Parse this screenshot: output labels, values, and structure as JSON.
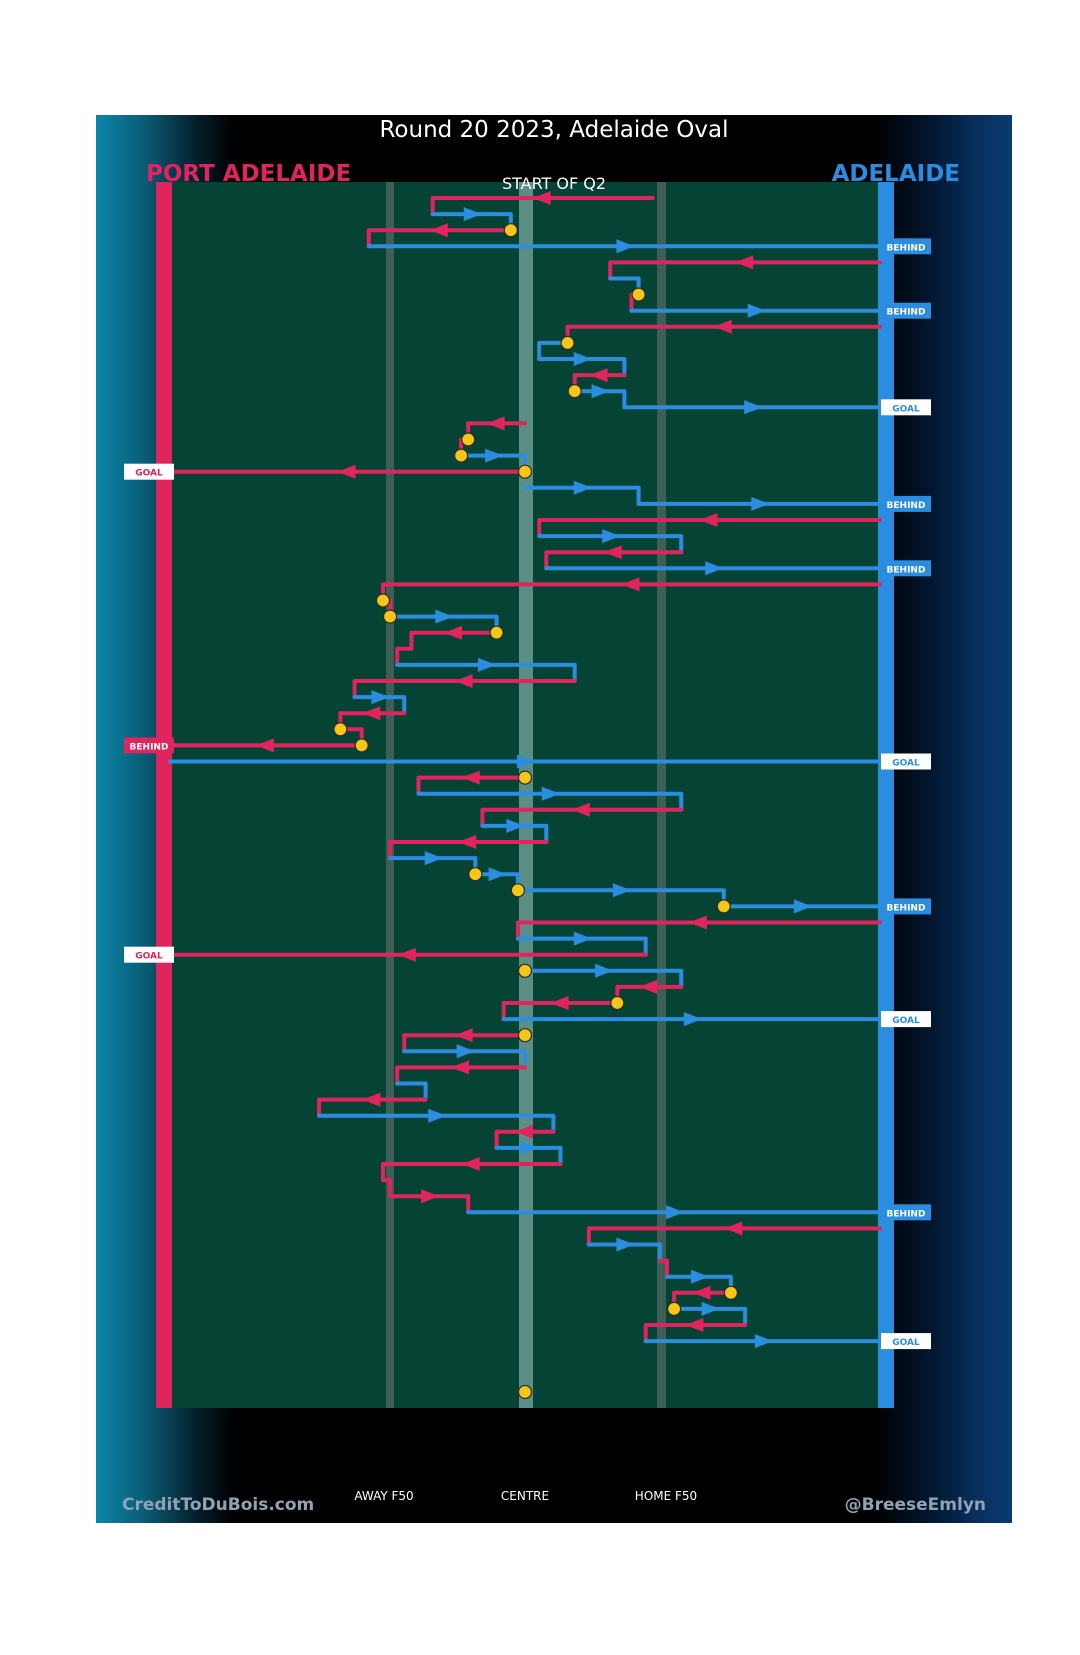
{
  "header": {
    "title": "Round 20 2023, Adelaide Oval",
    "team_left": "PORT ADELAIDE",
    "team_right": "ADELAIDE",
    "start_label": "START OF Q2"
  },
  "axis": {
    "away_f50": "AWAY F50",
    "centre": "CENTRE",
    "home_f50": "HOME F50"
  },
  "footer": {
    "credit_left": "CreditToDuBois.com",
    "credit_right": "@BreeseEmlyn"
  },
  "colors": {
    "port_adelaide": "#e0245e",
    "adelaide": "#2b8de0",
    "field": "#054435",
    "stoppage_marker": "#f5c518"
  },
  "chart_data": {
    "type": "chain-timeline",
    "title": "Round 20 2023, Adelaide Oval",
    "subtitle": "START OF Q2",
    "xaxis_labels": [
      "AWAY F50",
      "CENTRE",
      "HOME F50"
    ],
    "legend": [
      "PORT ADELAIDE",
      "ADELAIDE"
    ],
    "chains": [
      {
        "team": "PA",
        "pts": [
          [
            18,
            0
          ],
          [
            -13,
            0
          ],
          [
            -13,
            1
          ]
        ]
      },
      {
        "team": "AD",
        "pts": [
          [
            -13,
            1
          ],
          [
            -2,
            1
          ],
          [
            -2,
            2
          ]
        ]
      },
      {
        "team": "PA",
        "pts": [
          [
            -2,
            2
          ],
          [
            -22,
            2
          ],
          [
            -22,
            3
          ]
        ],
        "start": "stoppage"
      },
      {
        "team": "AD",
        "pts": [
          [
            -22,
            3
          ],
          [
            50,
            3
          ]
        ],
        "result": "BEHIND"
      },
      {
        "team": "PA",
        "pts": [
          [
            50,
            4
          ],
          [
            12,
            4
          ],
          [
            12,
            5
          ]
        ]
      },
      {
        "team": "AD",
        "pts": [
          [
            12,
            5
          ],
          [
            16,
            5
          ],
          [
            16,
            6
          ]
        ]
      },
      {
        "team": "PA",
        "pts": [
          [
            16,
            6
          ],
          [
            15,
            6
          ],
          [
            15,
            7
          ]
        ],
        "start": "stoppage"
      },
      {
        "team": "AD",
        "pts": [
          [
            15,
            7
          ],
          [
            50,
            7
          ]
        ],
        "result": "BEHIND"
      },
      {
        "team": "PA",
        "pts": [
          [
            50,
            8
          ],
          [
            6,
            8
          ],
          [
            6,
            9
          ]
        ]
      },
      {
        "team": "AD",
        "pts": [
          [
            6,
            9
          ],
          [
            2,
            9
          ],
          [
            2,
            10
          ]
        ],
        "start": "stoppage"
      },
      {
        "team": "AD",
        "pts": [
          [
            2,
            10
          ],
          [
            14,
            10
          ],
          [
            14,
            11
          ]
        ]
      },
      {
        "team": "PA",
        "pts": [
          [
            14,
            11
          ],
          [
            7,
            11
          ],
          [
            7,
            12
          ]
        ]
      },
      {
        "team": "AD",
        "pts": [
          [
            7,
            12
          ],
          [
            14,
            12
          ],
          [
            14,
            13
          ]
        ],
        "start": "stoppage"
      },
      {
        "team": "AD",
        "pts": [
          [
            14,
            13
          ],
          [
            50,
            13
          ]
        ],
        "result": "GOAL"
      },
      {
        "team": "PA",
        "pts": [
          [
            0,
            14
          ],
          [
            -8,
            14
          ],
          [
            -8,
            15
          ]
        ]
      },
      {
        "team": "PA",
        "pts": [
          [
            -8,
            15
          ],
          [
            -9,
            15
          ],
          [
            -9,
            16
          ]
        ],
        "start": "stoppage"
      },
      {
        "team": "AD",
        "pts": [
          [
            -9,
            16
          ],
          [
            0,
            16
          ],
          [
            0,
            17
          ]
        ],
        "start": "stoppage"
      },
      {
        "team": "PA",
        "pts": [
          [
            0,
            17
          ],
          [
            -50,
            17
          ]
        ],
        "result": "GOAL",
        "start": "stoppage"
      },
      {
        "team": "AD",
        "pts": [
          [
            0,
            18
          ],
          [
            16,
            18
          ],
          [
            16,
            19
          ]
        ]
      },
      {
        "team": "AD",
        "pts": [
          [
            16,
            19
          ],
          [
            50,
            19
          ]
        ],
        "result": "BEHIND"
      },
      {
        "team": "PA",
        "pts": [
          [
            50,
            20
          ],
          [
            2,
            20
          ],
          [
            2,
            21
          ]
        ]
      },
      {
        "team": "AD",
        "pts": [
          [
            2,
            21
          ],
          [
            22,
            21
          ],
          [
            22,
            22
          ]
        ]
      },
      {
        "team": "PA",
        "pts": [
          [
            22,
            22
          ],
          [
            3,
            22
          ],
          [
            3,
            23
          ]
        ]
      },
      {
        "team": "AD",
        "pts": [
          [
            3,
            23
          ],
          [
            50,
            23
          ]
        ],
        "result": "BEHIND"
      },
      {
        "team": "PA",
        "pts": [
          [
            50,
            24
          ],
          [
            -20,
            24
          ],
          [
            -20,
            25
          ]
        ]
      },
      {
        "team": "PA",
        "pts": [
          [
            -20,
            25
          ],
          [
            -19,
            25
          ],
          [
            -19,
            26
          ]
        ],
        "start": "stoppage"
      },
      {
        "team": "AD",
        "pts": [
          [
            -19,
            26
          ],
          [
            -4,
            26
          ],
          [
            -4,
            27
          ]
        ],
        "start": "stoppage"
      },
      {
        "team": "PA",
        "pts": [
          [
            -4,
            27
          ],
          [
            -16,
            27
          ],
          [
            -16,
            28
          ],
          [
            -18,
            28
          ],
          [
            -18,
            29
          ]
        ],
        "start": "stoppage"
      },
      {
        "team": "AD",
        "pts": [
          [
            -18,
            29
          ],
          [
            7,
            29
          ],
          [
            7,
            30
          ]
        ]
      },
      {
        "team": "PA",
        "pts": [
          [
            7,
            30
          ],
          [
            -24,
            30
          ],
          [
            -24,
            31
          ]
        ]
      },
      {
        "team": "AD",
        "pts": [
          [
            -24,
            31
          ],
          [
            -17,
            31
          ],
          [
            -17,
            32
          ]
        ]
      },
      {
        "team": "PA",
        "pts": [
          [
            -17,
            32
          ],
          [
            -26,
            32
          ],
          [
            -26,
            33
          ]
        ]
      },
      {
        "team": "PA",
        "pts": [
          [
            -26,
            33
          ],
          [
            -23,
            33
          ],
          [
            -23,
            34
          ]
        ],
        "start": "stoppage"
      },
      {
        "team": "PA",
        "pts": [
          [
            -23,
            34
          ],
          [
            -50,
            34
          ]
        ],
        "result": "BEHIND",
        "start": "stoppage"
      },
      {
        "team": "AD",
        "pts": [
          [
            -50,
            35
          ],
          [
            50,
            35
          ]
        ],
        "result": "GOAL"
      },
      {
        "team": "PA",
        "pts": [
          [
            0,
            36
          ],
          [
            -15,
            36
          ],
          [
            -15,
            37
          ]
        ],
        "start": "stoppage"
      },
      {
        "team": "AD",
        "pts": [
          [
            -15,
            37
          ],
          [
            22,
            37
          ],
          [
            22,
            38
          ]
        ]
      },
      {
        "team": "PA",
        "pts": [
          [
            22,
            38
          ],
          [
            -6,
            38
          ],
          [
            -6,
            39
          ]
        ]
      },
      {
        "team": "AD",
        "pts": [
          [
            -6,
            39
          ],
          [
            3,
            39
          ],
          [
            3,
            40
          ]
        ]
      },
      {
        "team": "PA",
        "pts": [
          [
            3,
            40
          ],
          [
            -19,
            40
          ],
          [
            -19,
            41
          ]
        ]
      },
      {
        "team": "AD",
        "pts": [
          [
            -19,
            41
          ],
          [
            -7,
            41
          ],
          [
            -7,
            42
          ]
        ]
      },
      {
        "team": "AD",
        "pts": [
          [
            -7,
            42
          ],
          [
            -1,
            42
          ],
          [
            -1,
            43
          ]
        ],
        "start": "stoppage"
      },
      {
        "team": "AD",
        "pts": [
          [
            -1,
            43
          ],
          [
            28,
            43
          ],
          [
            28,
            44
          ]
        ],
        "start": "stoppage"
      },
      {
        "team": "AD",
        "pts": [
          [
            28,
            44
          ],
          [
            50,
            44
          ]
        ],
        "result": "BEHIND",
        "start": "stoppage"
      },
      {
        "team": "PA",
        "pts": [
          [
            50,
            45
          ],
          [
            -1,
            45
          ],
          [
            -1,
            46
          ]
        ]
      },
      {
        "team": "AD",
        "pts": [
          [
            -1,
            46
          ],
          [
            17,
            46
          ],
          [
            17,
            47
          ]
        ]
      },
      {
        "team": "PA",
        "pts": [
          [
            17,
            47
          ],
          [
            -50,
            47
          ]
        ],
        "result": "GOAL"
      },
      {
        "team": "AD",
        "pts": [
          [
            0,
            48
          ],
          [
            22,
            48
          ],
          [
            22,
            49
          ]
        ],
        "start": "stoppage"
      },
      {
        "team": "PA",
        "pts": [
          [
            22,
            49
          ],
          [
            13,
            49
          ],
          [
            13,
            50
          ]
        ]
      },
      {
        "team": "PA",
        "pts": [
          [
            13,
            50
          ],
          [
            -3,
            50
          ],
          [
            -3,
            51
          ]
        ],
        "start": "stoppage"
      },
      {
        "team": "AD",
        "pts": [
          [
            -3,
            51
          ],
          [
            50,
            51
          ]
        ],
        "result": "GOAL"
      },
      {
        "team": "PA",
        "pts": [
          [
            0,
            52
          ],
          [
            -17,
            52
          ],
          [
            -17,
            53
          ]
        ],
        "start": "stoppage"
      },
      {
        "team": "AD",
        "pts": [
          [
            -17,
            53
          ],
          [
            0,
            53
          ],
          [
            0,
            54
          ]
        ]
      },
      {
        "team": "PA",
        "pts": [
          [
            0,
            54
          ],
          [
            -18,
            54
          ],
          [
            -18,
            55
          ]
        ]
      },
      {
        "team": "AD",
        "pts": [
          [
            -18,
            55
          ],
          [
            -14,
            55
          ],
          [
            -14,
            56
          ]
        ]
      },
      {
        "team": "PA",
        "pts": [
          [
            -14,
            56
          ],
          [
            -29,
            56
          ],
          [
            -29,
            57
          ]
        ]
      },
      {
        "team": "AD",
        "pts": [
          [
            -29,
            57
          ],
          [
            4,
            57
          ],
          [
            4,
            58
          ]
        ]
      },
      {
        "team": "PA",
        "pts": [
          [
            4,
            58
          ],
          [
            -4,
            58
          ],
          [
            -4,
            59
          ]
        ]
      },
      {
        "team": "AD",
        "pts": [
          [
            -4,
            59
          ],
          [
            5,
            59
          ],
          [
            5,
            60
          ]
        ]
      },
      {
        "team": "PA",
        "pts": [
          [
            5,
            60
          ],
          [
            -20,
            60
          ],
          [
            -20,
            61
          ],
          [
            -19,
            61
          ],
          [
            -19,
            62
          ]
        ]
      },
      {
        "team": "PA",
        "pts": [
          [
            -19,
            62
          ],
          [
            -8,
            62
          ],
          [
            -8,
            63
          ]
        ]
      },
      {
        "team": "AD",
        "pts": [
          [
            -8,
            63
          ],
          [
            50,
            63
          ]
        ],
        "result": "BEHIND"
      },
      {
        "team": "PA",
        "pts": [
          [
            50,
            64
          ],
          [
            9,
            64
          ],
          [
            9,
            65
          ]
        ]
      },
      {
        "team": "AD",
        "pts": [
          [
            9,
            65
          ],
          [
            19,
            65
          ],
          [
            19,
            66
          ]
        ]
      },
      {
        "team": "PA",
        "pts": [
          [
            19,
            66
          ],
          [
            20,
            66
          ],
          [
            20,
            67
          ]
        ]
      },
      {
        "team": "AD",
        "pts": [
          [
            20,
            67
          ],
          [
            29,
            67
          ],
          [
            29,
            68
          ]
        ]
      },
      {
        "team": "PA",
        "pts": [
          [
            29,
            68
          ],
          [
            21,
            68
          ],
          [
            21,
            69
          ]
        ],
        "start": "stoppage"
      },
      {
        "team": "AD",
        "pts": [
          [
            21,
            69
          ],
          [
            31,
            69
          ],
          [
            31,
            70
          ]
        ],
        "start": "stoppage"
      },
      {
        "team": "PA",
        "pts": [
          [
            31,
            70
          ],
          [
            17,
            70
          ],
          [
            17,
            71
          ]
        ]
      },
      {
        "team": "AD",
        "pts": [
          [
            17,
            71
          ],
          [
            50,
            71
          ]
        ],
        "result": "GOAL"
      }
    ],
    "final_marker": "stoppage at CENTRE"
  }
}
